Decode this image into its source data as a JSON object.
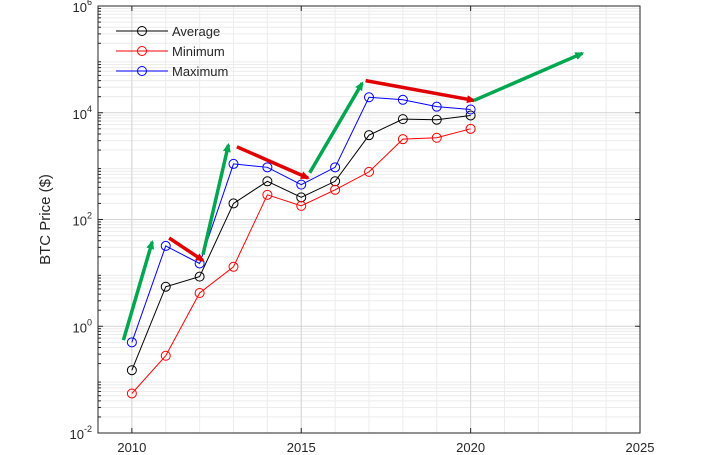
{
  "chart_data": {
    "type": "line",
    "ylabel": "BTC Price ($)",
    "xlabel": "",
    "xlim": [
      2009,
      2025
    ],
    "ylim": [
      0.01,
      1000000
    ],
    "yscale": "log",
    "x_ticks": [
      2010,
      2015,
      2020,
      2025
    ],
    "y_ticks": [
      {
        "value": 0.01,
        "base": "10",
        "exp": "-2"
      },
      {
        "value": 1,
        "base": "10",
        "exp": "0"
      },
      {
        "value": 100,
        "base": "10",
        "exp": "2"
      },
      {
        "value": 10000,
        "base": "10",
        "exp": "4"
      },
      {
        "value": 1000000,
        "base": "10",
        "exp": "6"
      }
    ],
    "grid": true,
    "legend_position": "top-left",
    "x": [
      2010,
      2011,
      2012,
      2013,
      2014,
      2015,
      2016,
      2017,
      2018,
      2019,
      2020
    ],
    "series": [
      {
        "name": "Average",
        "color": "#000000",
        "values": [
          0.15,
          5.5,
          8.5,
          200,
          520,
          260,
          520,
          3800,
          7600,
          7400,
          8900
        ]
      },
      {
        "name": "Minimum",
        "color": "#ff0000",
        "values": [
          0.055,
          0.28,
          4.2,
          13,
          290,
          180,
          360,
          780,
          3200,
          3400,
          5000
        ]
      },
      {
        "name": "Maximum",
        "color": "#0000ff",
        "values": [
          0.5,
          32,
          15,
          1100,
          950,
          450,
          950,
          19500,
          17500,
          13000,
          11500
        ]
      }
    ],
    "trend_arrows": [
      {
        "color": "#00a650",
        "trend": "up",
        "from": [
          2009.75,
          0.55
        ],
        "to": [
          2010.6,
          38
        ]
      },
      {
        "color": "#e00000",
        "trend": "down",
        "from": [
          2011.1,
          45
        ],
        "to": [
          2012.1,
          17
        ]
      },
      {
        "color": "#00a650",
        "trend": "up",
        "from": [
          2012.1,
          22
        ],
        "to": [
          2012.85,
          2500
        ]
      },
      {
        "color": "#e00000",
        "trend": "down",
        "from": [
          2013.1,
          2300
        ],
        "to": [
          2015.2,
          600
        ]
      },
      {
        "color": "#00a650",
        "trend": "up",
        "from": [
          2015.25,
          750
        ],
        "to": [
          2016.8,
          36000
        ]
      },
      {
        "color": "#e00000",
        "trend": "down",
        "from": [
          2016.9,
          40000
        ],
        "to": [
          2020.1,
          17000
        ]
      },
      {
        "color": "#00a650",
        "trend": "up",
        "from": [
          2020.1,
          17000
        ],
        "to": [
          2023.3,
          130000
        ]
      }
    ]
  }
}
